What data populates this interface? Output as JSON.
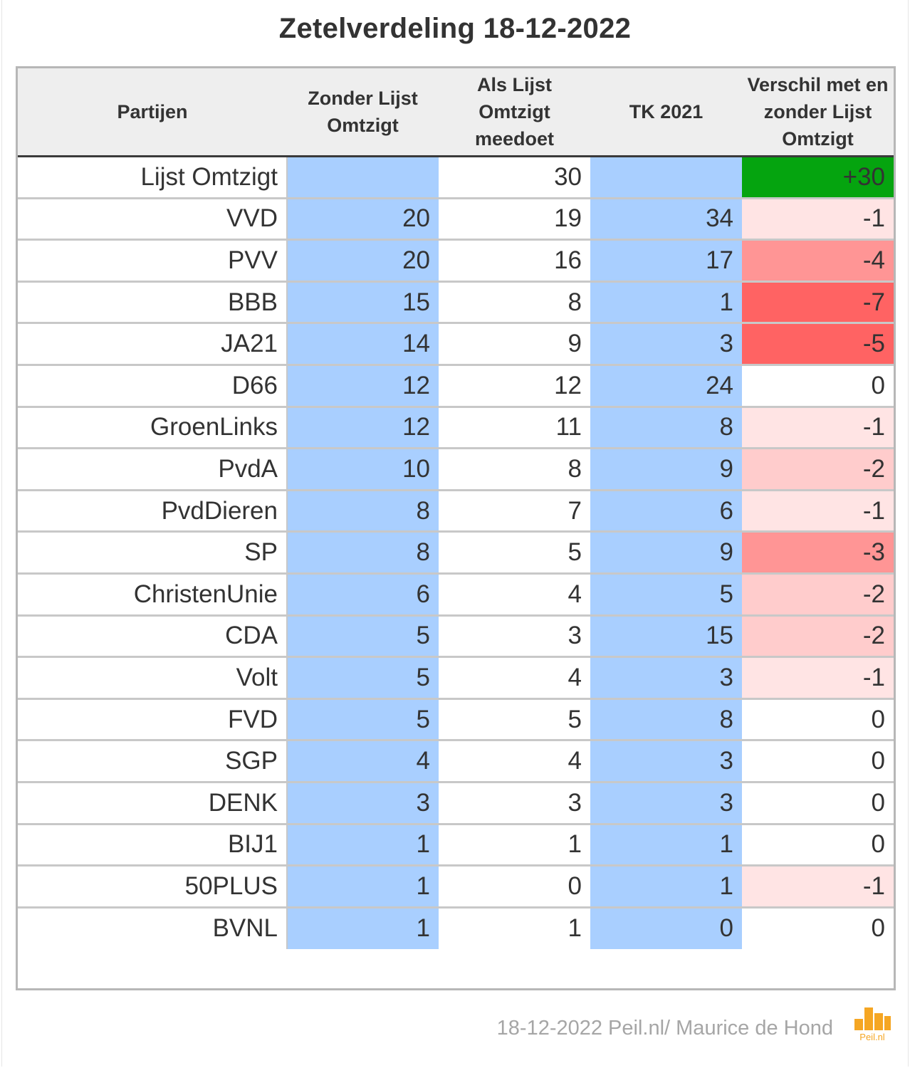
{
  "chart_data": {
    "type": "table",
    "title": "Zetelverdeling 18-12-2022",
    "columns": [
      "Partijen",
      "Zonder Lijst Omtzigt",
      "Als Lijst Omtzigt meedoet",
      "TK 2021",
      "Verschil met en zonder Lijst Omtzigt"
    ],
    "rows": [
      {
        "party": "Lijst Omtzigt",
        "zonder": "",
        "als": "30",
        "tk2021": "",
        "verschil": "+30"
      },
      {
        "party": "VVD",
        "zonder": "20",
        "als": "19",
        "tk2021": "34",
        "verschil": "-1"
      },
      {
        "party": "PVV",
        "zonder": "20",
        "als": "16",
        "tk2021": "17",
        "verschil": "-4"
      },
      {
        "party": "BBB",
        "zonder": "15",
        "als": "8",
        "tk2021": "1",
        "verschil": "-7"
      },
      {
        "party": "JA21",
        "zonder": "14",
        "als": "9",
        "tk2021": "3",
        "verschil": "-5"
      },
      {
        "party": "D66",
        "zonder": "12",
        "als": "12",
        "tk2021": "24",
        "verschil": "0"
      },
      {
        "party": "GroenLinks",
        "zonder": "12",
        "als": "11",
        "tk2021": "8",
        "verschil": "-1"
      },
      {
        "party": "PvdA",
        "zonder": "10",
        "als": "8",
        "tk2021": "9",
        "verschil": "-2"
      },
      {
        "party": "PvdDieren",
        "zonder": "8",
        "als": "7",
        "tk2021": "6",
        "verschil": "-1"
      },
      {
        "party": "SP",
        "zonder": "8",
        "als": "5",
        "tk2021": "9",
        "verschil": "-3"
      },
      {
        "party": "ChristenUnie",
        "zonder": "6",
        "als": "4",
        "tk2021": "5",
        "verschil": "-2"
      },
      {
        "party": "CDA",
        "zonder": "5",
        "als": "3",
        "tk2021": "15",
        "verschil": "-2"
      },
      {
        "party": "Volt",
        "zonder": "5",
        "als": "4",
        "tk2021": "3",
        "verschil": "-1"
      },
      {
        "party": "FVD",
        "zonder": "5",
        "als": "5",
        "tk2021": "8",
        "verschil": "0"
      },
      {
        "party": "SGP",
        "zonder": "4",
        "als": "4",
        "tk2021": "3",
        "verschil": "0"
      },
      {
        "party": "DENK",
        "zonder": "3",
        "als": "3",
        "tk2021": "3",
        "verschil": "0"
      },
      {
        "party": "BIJ1",
        "zonder": "1",
        "als": "1",
        "tk2021": "1",
        "verschil": "0"
      },
      {
        "party": "50PLUS",
        "zonder": "1",
        "als": "0",
        "tk2021": "1",
        "verschil": "-1"
      },
      {
        "party": "BVNL",
        "zonder": "1",
        "als": "1",
        "tk2021": "0",
        "verschil": "0"
      }
    ]
  },
  "colors": {
    "column_blue": "#a9cfff",
    "positive": "#05a40f",
    "minus_1": "#ffe4e4",
    "minus_2": "#ffcccc",
    "minus_3_4": "#ff9595",
    "minus_5_plus": "#ff6363",
    "header_bg": "#eeeeee"
  },
  "footer": {
    "credit": "18-12-2022 Peil.nl/ Maurice de Hond",
    "logo_text": "Peil.nl"
  }
}
